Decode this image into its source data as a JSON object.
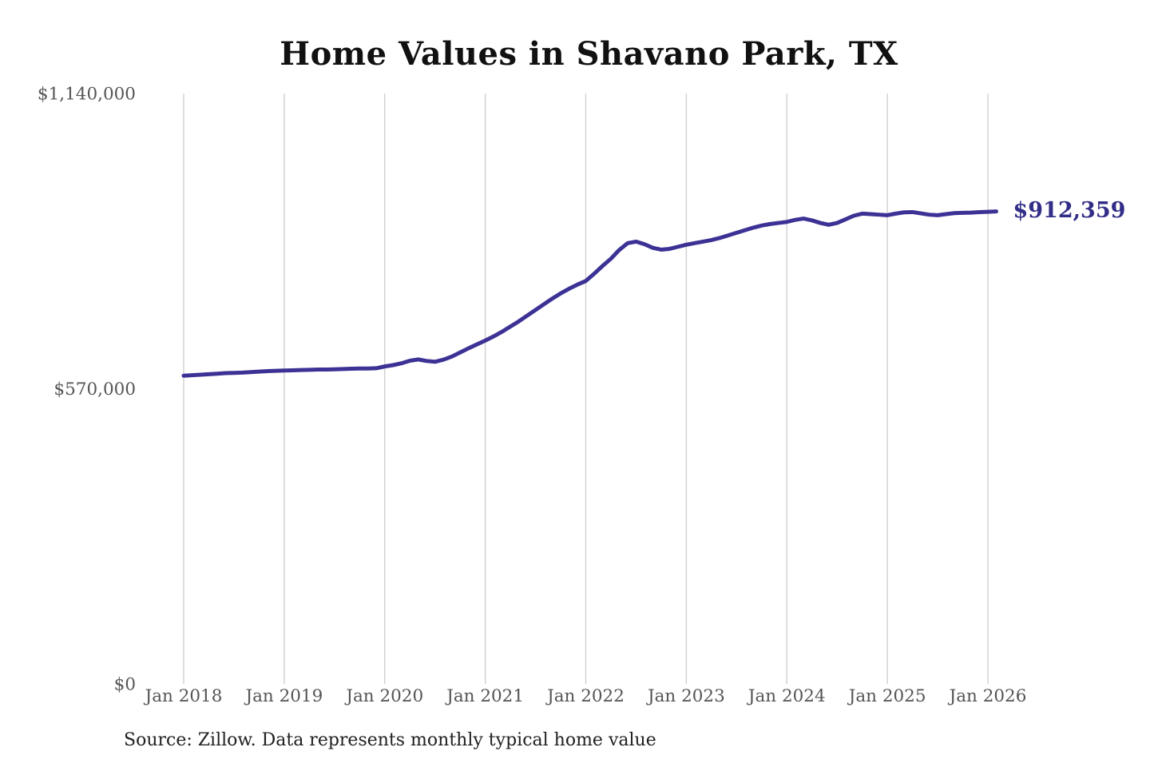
{
  "chart": {
    "title": "Home Values in Shavano Park, TX",
    "source": "Source: Zillow. Data represents monthly typical home value",
    "end_label": "$912,359",
    "line_color": "#3c3295",
    "annotation_color": "#322e87",
    "grid_color": "#cccccc",
    "axis_text_color": "#555555",
    "title_color": "#111111"
  },
  "chart_data": {
    "type": "line",
    "title": "Home Values in Shavano Park, TX",
    "xlabel": "",
    "ylabel": "",
    "x_start": "2018-01",
    "x_interval": "month",
    "x_tick_labels": [
      "Jan 2018",
      "Jan 2019",
      "Jan 2020",
      "Jan 2021",
      "Jan 2022",
      "Jan 2023",
      "Jan 2024",
      "Jan 2025",
      "Jan 2026"
    ],
    "months_per_tick": 12,
    "y_ticks": [
      {
        "label": "$0",
        "value": 0
      },
      {
        "label": "$570,000",
        "value": 570000
      },
      {
        "label": "$1,140,000",
        "value": 1140000
      }
    ],
    "ylim": [
      0,
      1140000
    ],
    "grid": "vertical-only",
    "legend": "none",
    "annotation": "$912,359",
    "end_value": 912359,
    "series": [
      {
        "name": "Monthly typical home value",
        "values": [
          595000,
          596000,
          597000,
          598000,
          599000,
          600000,
          600500,
          601000,
          602000,
          603000,
          604000,
          604500,
          605000,
          605500,
          606000,
          606500,
          607000,
          607000,
          607500,
          608000,
          608500,
          609000,
          609000,
          609500,
          613000,
          615500,
          619000,
          624000,
          626500,
          623500,
          622000,
          626000,
          632000,
          640000,
          648000,
          655500,
          663000,
          671000,
          680000,
          690000,
          700000,
          711000,
          722000,
          733000,
          744000,
          754000,
          763000,
          771000,
          778000,
          792000,
          807000,
          821000,
          838000,
          851000,
          854000,
          849000,
          842000,
          838500,
          840000,
          844000,
          848000,
          851000,
          854000,
          857000,
          861000,
          866000,
          871000,
          876000,
          881000,
          885000,
          888000,
          890000,
          892000,
          896000,
          898500,
          895000,
          890000,
          886500,
          890000,
          897000,
          904000,
          908000,
          907000,
          906000,
          905000,
          908000,
          910500,
          911000,
          908500,
          906000,
          905000,
          907000,
          909000,
          909500,
          910000,
          911000,
          911500,
          912359
        ]
      }
    ]
  }
}
